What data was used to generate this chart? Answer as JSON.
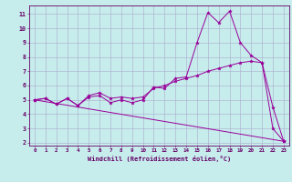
{
  "xlabel": "Windchill (Refroidissement éolien,°C)",
  "xlim": [
    -0.5,
    23.5
  ],
  "ylim": [
    1.8,
    11.6
  ],
  "yticks": [
    2,
    3,
    4,
    5,
    6,
    7,
    8,
    9,
    10,
    11
  ],
  "xticks": [
    0,
    1,
    2,
    3,
    4,
    5,
    6,
    7,
    8,
    9,
    10,
    11,
    12,
    13,
    14,
    15,
    16,
    17,
    18,
    19,
    20,
    21,
    22,
    23
  ],
  "bg_color": "#c6ecec",
  "grid_color": "#aaaacc",
  "line_color": "#990099",
  "series1": [
    [
      0,
      5.0
    ],
    [
      1,
      5.1
    ],
    [
      2,
      4.7
    ],
    [
      3,
      5.1
    ],
    [
      4,
      4.6
    ],
    [
      5,
      5.2
    ],
    [
      6,
      5.3
    ],
    [
      7,
      4.8
    ],
    [
      8,
      5.0
    ],
    [
      9,
      4.8
    ],
    [
      10,
      5.0
    ],
    [
      11,
      5.9
    ],
    [
      12,
      5.8
    ],
    [
      13,
      6.5
    ],
    [
      14,
      6.6
    ],
    [
      15,
      9.0
    ],
    [
      16,
      11.1
    ],
    [
      17,
      10.4
    ],
    [
      18,
      11.2
    ],
    [
      19,
      9.0
    ],
    [
      20,
      8.1
    ],
    [
      21,
      7.6
    ],
    [
      22,
      3.0
    ],
    [
      23,
      2.1
    ]
  ],
  "series2": [
    [
      0,
      5.0
    ],
    [
      1,
      5.1
    ],
    [
      2,
      4.7
    ],
    [
      3,
      5.1
    ],
    [
      4,
      4.6
    ],
    [
      5,
      5.3
    ],
    [
      6,
      5.5
    ],
    [
      7,
      5.1
    ],
    [
      8,
      5.2
    ],
    [
      9,
      5.1
    ],
    [
      10,
      5.2
    ],
    [
      11,
      5.8
    ],
    [
      12,
      6.0
    ],
    [
      13,
      6.3
    ],
    [
      14,
      6.5
    ],
    [
      15,
      6.7
    ],
    [
      16,
      7.0
    ],
    [
      17,
      7.2
    ],
    [
      18,
      7.4
    ],
    [
      19,
      7.6
    ],
    [
      20,
      7.7
    ],
    [
      21,
      7.6
    ],
    [
      22,
      4.5
    ],
    [
      23,
      2.1
    ]
  ],
  "series3": [
    [
      0,
      5.0
    ],
    [
      23,
      2.1
    ]
  ]
}
